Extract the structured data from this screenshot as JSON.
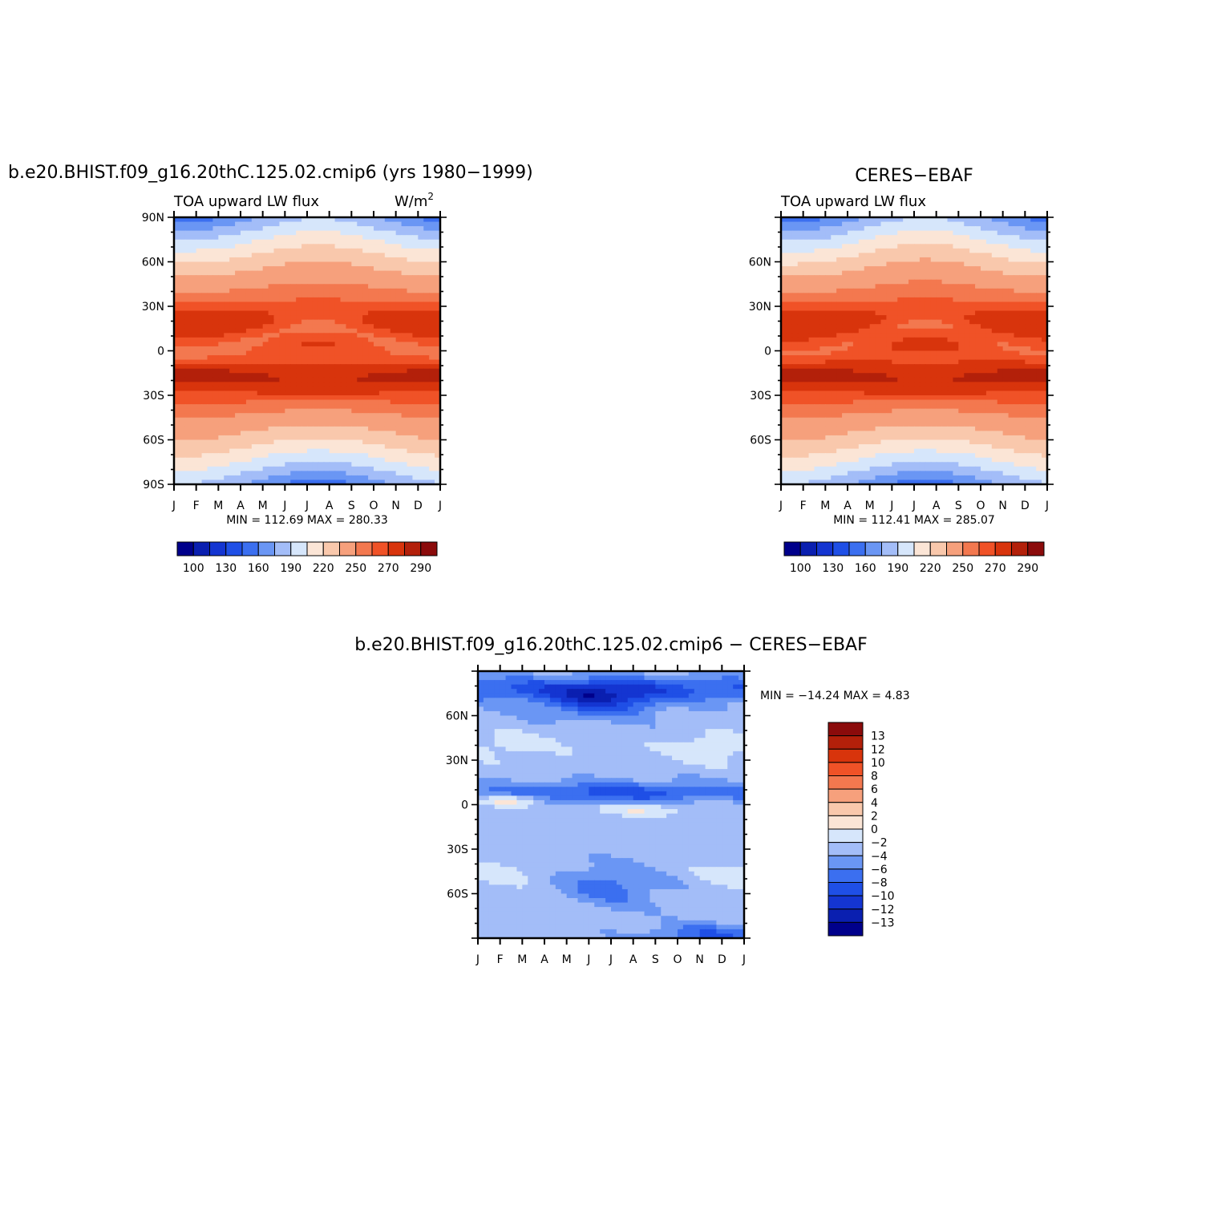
{
  "palette": [
    "#00008b",
    "#0a1fb0",
    "#1435d1",
    "#1f4fe6",
    "#3b6ff0",
    "#6a96f4",
    "#a3bdf8",
    "#d6e6fb",
    "#fbe5d6",
    "#f9c8ac",
    "#f6a07c",
    "#f3784f",
    "#f05227",
    "#d8340c",
    "#b3200a",
    "#8b0b0b"
  ],
  "chart_data": [
    {
      "id": "model",
      "type": "heatmap",
      "title": "b.e20.BHIST.f09_g16.20thC.125.02.cmip6 (yrs 1980−1999)",
      "left_label": "TOA upward LW flux",
      "right_label": "W/m",
      "right_label_sup": "2",
      "x_ticks": [
        "J",
        "F",
        "M",
        "A",
        "M",
        "J",
        "J",
        "A",
        "S",
        "O",
        "N",
        "D",
        "J"
      ],
      "y_ticks": [
        "90N",
        "60N",
        "30N",
        "0",
        "30S",
        "60S",
        "90S"
      ],
      "y_tick_lat": [
        90,
        60,
        30,
        0,
        -30,
        -60,
        -90
      ],
      "ylim": [
        -90,
        90
      ],
      "stats_text": "MIN = 112.69  MAX = 280.33",
      "min": 112.69,
      "max": 280.33,
      "colorbar_labels": [
        "100",
        "130",
        "160",
        "190",
        "220",
        "250",
        "270",
        "290"
      ],
      "levels": [
        100,
        115,
        130,
        145,
        160,
        175,
        190,
        205,
        220,
        235,
        250,
        260,
        270,
        280,
        290
      ]
    },
    {
      "id": "obs",
      "type": "heatmap",
      "title": "CERES−EBAF",
      "left_label": "TOA upward LW flux",
      "x_ticks": [
        "J",
        "F",
        "M",
        "A",
        "M",
        "J",
        "J",
        "A",
        "S",
        "O",
        "N",
        "D",
        "J"
      ],
      "y_ticks": [
        "60N",
        "30N",
        "0",
        "30S",
        "60S"
      ],
      "y_tick_lat": [
        60,
        30,
        0,
        -30,
        -60
      ],
      "ylim": [
        -90,
        90
      ],
      "stats_text": "MIN = 112.41  MAX = 285.07",
      "min": 112.41,
      "max": 285.07,
      "colorbar_labels": [
        "100",
        "130",
        "160",
        "190",
        "220",
        "250",
        "270",
        "290"
      ],
      "levels": [
        100,
        115,
        130,
        145,
        160,
        175,
        190,
        205,
        220,
        235,
        250,
        260,
        270,
        280,
        290
      ]
    },
    {
      "id": "diff",
      "type": "heatmap",
      "title": "b.e20.BHIST.f09_g16.20thC.125.02.cmip6 − CERES−EBAF",
      "x_ticks": [
        "J",
        "F",
        "M",
        "A",
        "M",
        "J",
        "J",
        "A",
        "S",
        "O",
        "N",
        "D",
        "J"
      ],
      "y_ticks": [
        "60N",
        "30N",
        "0",
        "30S",
        "60S"
      ],
      "y_tick_lat": [
        60,
        30,
        0,
        -30,
        -60
      ],
      "ylim": [
        -90,
        90
      ],
      "stats_text": "MIN = −14.24 MAX =    4.83",
      "min": -14.24,
      "max": 4.83,
      "colorbar_labels": [
        "13",
        "12",
        "10",
        "8",
        "6",
        "4",
        "2",
        "0",
        "−2",
        "−4",
        "−6",
        "−8",
        "−10",
        "−12",
        "−13"
      ],
      "levels": [
        -13,
        -12,
        -10,
        -8,
        -6,
        -4,
        -2,
        0,
        2,
        4,
        6,
        8,
        10,
        12,
        13
      ]
    }
  ]
}
